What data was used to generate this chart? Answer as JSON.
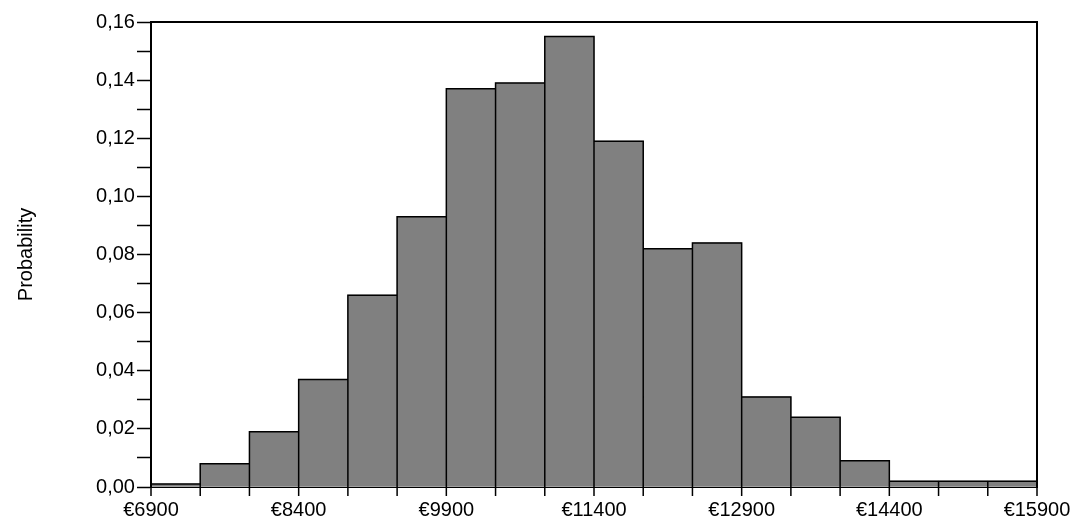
{
  "chart_data": {
    "type": "histogram",
    "ylabel": "Probability",
    "bins": [
      6900,
      7400,
      7900,
      8400,
      8900,
      9400,
      9900,
      10400,
      10900,
      11400,
      11900,
      12400,
      12900,
      13400,
      13900,
      14400,
      14900,
      15400,
      15900
    ],
    "values": [
      0.001,
      0.008,
      0.019,
      0.037,
      0.066,
      0.093,
      0.137,
      0.139,
      0.155,
      0.119,
      0.082,
      0.084,
      0.031,
      0.024,
      0.009,
      0.002,
      0.002,
      0.002
    ],
    "color": "#808080",
    "xlim": [
      6900,
      15900
    ],
    "xticks": [
      {
        "value": 6900,
        "label": "€6900"
      },
      {
        "value": 7400,
        "label": null
      },
      {
        "value": 7900,
        "label": null
      },
      {
        "value": 8400,
        "label": "€8400"
      },
      {
        "value": 8900,
        "label": null
      },
      {
        "value": 9400,
        "label": null
      },
      {
        "value": 9900,
        "label": "€9900"
      },
      {
        "value": 10400,
        "label": null
      },
      {
        "value": 10900,
        "label": null
      },
      {
        "value": 11400,
        "label": "€11400"
      },
      {
        "value": 11900,
        "label": null
      },
      {
        "value": 12400,
        "label": null
      },
      {
        "value": 12900,
        "label": "€12900"
      },
      {
        "value": 13400,
        "label": null
      },
      {
        "value": 13900,
        "label": null
      },
      {
        "value": 14400,
        "label": "€14400"
      },
      {
        "value": 14900,
        "label": null
      },
      {
        "value": 15400,
        "label": null
      },
      {
        "value": 15900,
        "label": "€15900"
      }
    ],
    "ylim": [
      0,
      0.16
    ],
    "yticks": [
      {
        "value": 0,
        "label": "0,00"
      },
      {
        "value": 0.01,
        "label": null
      },
      {
        "value": 0.02,
        "label": "0,02"
      },
      {
        "value": 0.03,
        "label": null
      },
      {
        "value": 0.04,
        "label": "0,04"
      },
      {
        "value": 0.05,
        "label": null
      },
      {
        "value": 0.06,
        "label": "0,06"
      },
      {
        "value": 0.07,
        "label": null
      },
      {
        "value": 0.08,
        "label": "0,08"
      },
      {
        "value": 0.09,
        "label": null
      },
      {
        "value": 0.1,
        "label": "0,10"
      },
      {
        "value": 0.11,
        "label": null
      },
      {
        "value": 0.12,
        "label": "0,12"
      },
      {
        "value": 0.13,
        "label": null
      },
      {
        "value": 0.14,
        "label": "0,14"
      },
      {
        "value": 0.15,
        "label": null
      },
      {
        "value": 0.16,
        "label": "0,16"
      }
    ],
    "grid": false,
    "legend": false
  }
}
